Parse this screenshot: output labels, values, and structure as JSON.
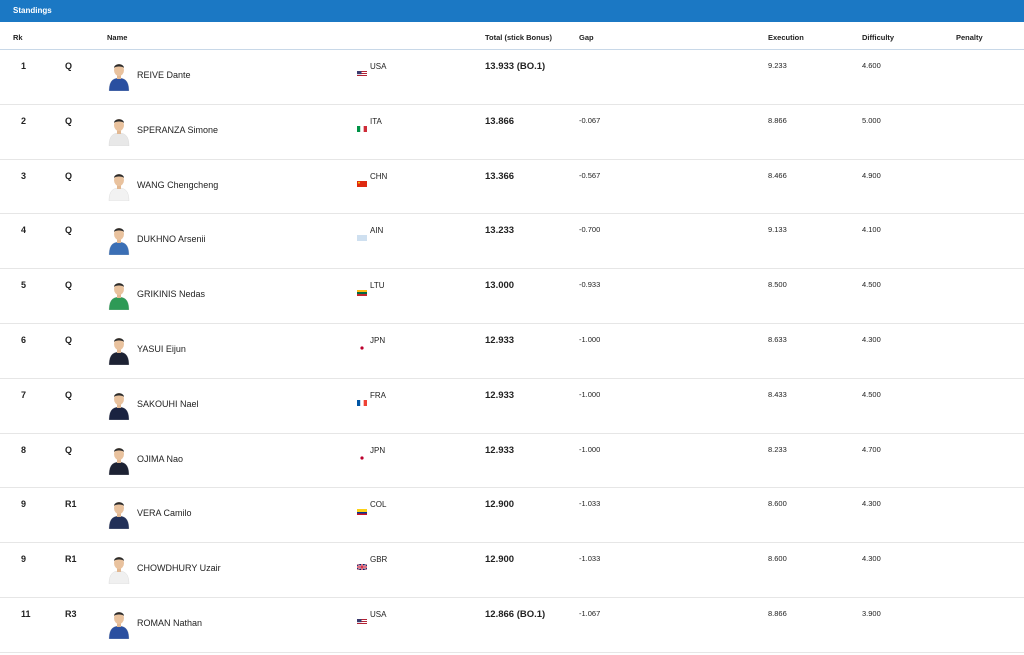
{
  "panel_title": "Standings",
  "columns": {
    "rk": "Rk",
    "name": "Name",
    "total": "Total (stick Bonus)",
    "gap": "Gap",
    "execution": "Execution",
    "difficulty": "Difficulty",
    "penalty": "Penalty"
  },
  "colors": {
    "header_bar": "#1b78c4"
  },
  "rows": [
    {
      "rk": "1",
      "qual": "Q",
      "name": "REIVE Dante",
      "noc": "USA",
      "flag": "usa",
      "kit": "#2a4fa0",
      "total": "13.933 (BO.1)",
      "gap": "",
      "execution": "9.233",
      "difficulty": "4.600",
      "penalty": ""
    },
    {
      "rk": "2",
      "qual": "Q",
      "name": "SPERANZA Simone",
      "noc": "ITA",
      "flag": "ita",
      "kit": "#e8e8e8",
      "total": "13.866",
      "gap": "-0.067",
      "execution": "8.866",
      "difficulty": "5.000",
      "penalty": ""
    },
    {
      "rk": "3",
      "qual": "Q",
      "name": "WANG Chengcheng",
      "noc": "CHN",
      "flag": "chn",
      "kit": "#f2f2f2",
      "total": "13.366",
      "gap": "-0.567",
      "execution": "8.466",
      "difficulty": "4.900",
      "penalty": ""
    },
    {
      "rk": "4",
      "qual": "Q",
      "name": "DUKHNO Arsenii",
      "noc": "AIN",
      "flag": "ain",
      "kit": "#3b6fb5",
      "total": "13.233",
      "gap": "-0.700",
      "execution": "9.133",
      "difficulty": "4.100",
      "penalty": ""
    },
    {
      "rk": "5",
      "qual": "Q",
      "name": "GRIKINIS Nedas",
      "noc": "LTU",
      "flag": "ltu",
      "kit": "#2e9a56",
      "total": "13.000",
      "gap": "-0.933",
      "execution": "8.500",
      "difficulty": "4.500",
      "penalty": ""
    },
    {
      "rk": "6",
      "qual": "Q",
      "name": "YASUI Eijun",
      "noc": "JPN",
      "flag": "jpn",
      "kit": "#1d2233",
      "total": "12.933",
      "gap": "-1.000",
      "execution": "8.633",
      "difficulty": "4.300",
      "penalty": ""
    },
    {
      "rk": "7",
      "qual": "Q",
      "name": "SAKOUHI Nael",
      "noc": "FRA",
      "flag": "fra",
      "kit": "#1a2340",
      "total": "12.933",
      "gap": "-1.000",
      "execution": "8.433",
      "difficulty": "4.500",
      "penalty": ""
    },
    {
      "rk": "8",
      "qual": "Q",
      "name": "OJIMA Nao",
      "noc": "JPN",
      "flag": "jpn",
      "kit": "#1d2233",
      "total": "12.933",
      "gap": "-1.000",
      "execution": "8.233",
      "difficulty": "4.700",
      "penalty": ""
    },
    {
      "rk": "9",
      "qual": "R1",
      "name": "VERA Camilo",
      "noc": "COL",
      "flag": "col",
      "kit": "#223058",
      "total": "12.900",
      "gap": "-1.033",
      "execution": "8.600",
      "difficulty": "4.300",
      "penalty": ""
    },
    {
      "rk": "9",
      "qual": "R1",
      "name": "CHOWDHURY Uzair",
      "noc": "GBR",
      "flag": "gbr",
      "kit": "#f0f0f0",
      "total": "12.900",
      "gap": "-1.033",
      "execution": "8.600",
      "difficulty": "4.300",
      "penalty": ""
    },
    {
      "rk": "11",
      "qual": "R3",
      "name": "ROMAN Nathan",
      "noc": "USA",
      "flag": "usa",
      "kit": "#2a4fa0",
      "total": "12.866 (BO.1)",
      "gap": "-1.067",
      "execution": "8.866",
      "difficulty": "3.900",
      "penalty": ""
    }
  ]
}
